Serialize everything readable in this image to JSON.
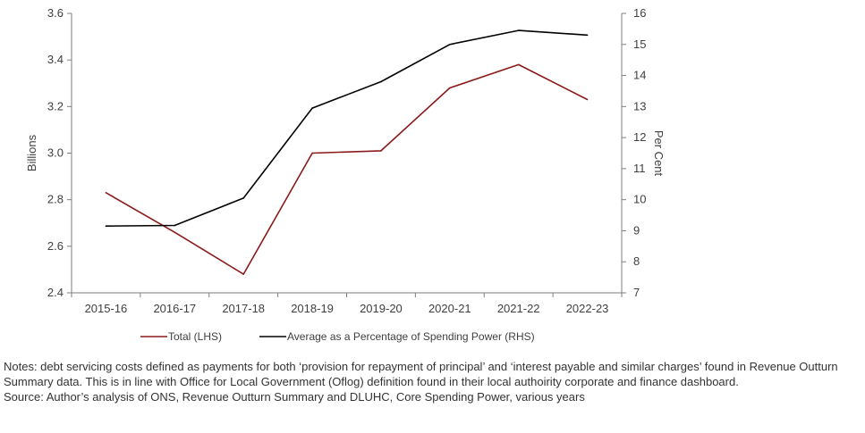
{
  "chart_data": {
    "type": "line",
    "categories": [
      "2015-16",
      "2016-17",
      "2017-18",
      "2018-19",
      "2019-20",
      "2020-21",
      "2021-22",
      "2022-23"
    ],
    "series": [
      {
        "name": "Total (LHS)",
        "axis": "left",
        "color": "#8b1a1a",
        "values": [
          2.83,
          2.66,
          2.48,
          3.0,
          3.01,
          3.28,
          3.38,
          3.23
        ]
      },
      {
        "name": "Average as a Percentage of Spending Power (RHS)",
        "axis": "right",
        "color": "#000000",
        "values": [
          9.15,
          9.17,
          10.05,
          12.95,
          13.8,
          15.0,
          15.45,
          15.3
        ]
      }
    ],
    "ylabel": "Billions",
    "y2label": "Per Cent",
    "ylim": [
      2.4,
      3.6
    ],
    "yticks": [
      "2.4",
      "2.6",
      "2.8",
      "3.0",
      "3.2",
      "3.4",
      "3.6"
    ],
    "y2lim": [
      7,
      16
    ],
    "y2ticks": [
      "7",
      "8",
      "9",
      "10",
      "11",
      "12",
      "13",
      "14",
      "15",
      "16"
    ],
    "grid": false,
    "legend_position": "bottom"
  },
  "notes": {
    "line1": "Notes: debt servicing costs defined as payments for both ‘provision for repayment of principal’ and ‘interest payable and similar charges’ found in Revenue Outturn Summary data. This is in line with Office for Local Government (Oflog) definition found in their local authoirity corporate and finance dashboard.",
    "source": "Source: Author’s analysis of ONS, Revenue Outturn Summary and DLUHC, Core Spending Power, various years"
  }
}
